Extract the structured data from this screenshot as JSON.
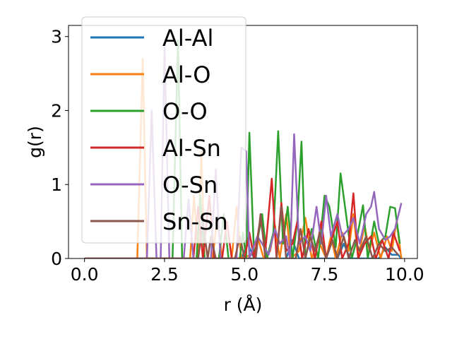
{
  "chart_data": {
    "type": "line",
    "xlabel": "r (Å)",
    "ylabel": "g(r)",
    "xlim": [
      -0.5,
      10.4
    ],
    "ylim": [
      0,
      3.15
    ],
    "xticks": [
      0.0,
      2.5,
      5.0,
      7.5,
      10.0
    ],
    "xtick_labels": [
      "0.0",
      "2.5",
      "5.0",
      "7.5",
      "10.0"
    ],
    "yticks": [
      0,
      1,
      2,
      3
    ],
    "ytick_labels": [
      "0",
      "1",
      "2",
      "3"
    ],
    "grid": false,
    "legend_position": "upper-left",
    "series": [
      {
        "name": "Al-Al",
        "color": "#1f77b4",
        "points": [
          [
            0,
            0
          ],
          [
            4.9,
            0
          ],
          [
            5.1,
            0.2
          ],
          [
            5.3,
            0
          ],
          [
            6.3,
            0
          ],
          [
            6.5,
            0.25
          ],
          [
            6.7,
            0
          ],
          [
            7.9,
            0
          ],
          [
            8.1,
            0.2
          ],
          [
            8.3,
            0
          ],
          [
            9.2,
            0
          ],
          [
            9.4,
            0.15
          ],
          [
            9.6,
            0.05
          ],
          [
            9.8,
            0.05
          ],
          [
            9.9,
            0
          ]
        ]
      },
      {
        "name": "Al-O",
        "color": "#ff7f0e",
        "points": [
          [
            0,
            0
          ],
          [
            1.65,
            0
          ],
          [
            1.82,
            2.7
          ],
          [
            1.95,
            0
          ],
          [
            3.3,
            0
          ],
          [
            3.42,
            0.85
          ],
          [
            3.55,
            0
          ],
          [
            3.65,
            1.45
          ],
          [
            3.75,
            0
          ],
          [
            4.0,
            0
          ],
          [
            4.15,
            0.55
          ],
          [
            4.3,
            0
          ],
          [
            4.6,
            0
          ],
          [
            4.75,
            0.7
          ],
          [
            4.9,
            0
          ],
          [
            5.2,
            0.05
          ],
          [
            5.4,
            0.3
          ],
          [
            5.6,
            0
          ],
          [
            5.8,
            0.1
          ],
          [
            5.95,
            0.45
          ],
          [
            6.1,
            0
          ],
          [
            6.3,
            0.6
          ],
          [
            6.45,
            0
          ],
          [
            6.7,
            0.1
          ],
          [
            6.9,
            0.55
          ],
          [
            7.1,
            0
          ],
          [
            7.3,
            0.25
          ],
          [
            7.55,
            0
          ],
          [
            7.7,
            0.3
          ],
          [
            7.85,
            0
          ],
          [
            8.05,
            0.35
          ],
          [
            8.25,
            0.1
          ],
          [
            8.4,
            0.6
          ],
          [
            8.55,
            0
          ],
          [
            8.75,
            0.45
          ],
          [
            8.9,
            0.1
          ],
          [
            9.05,
            0.35
          ],
          [
            9.25,
            0
          ],
          [
            9.45,
            0.3
          ],
          [
            9.6,
            0.1
          ],
          [
            9.75,
            0.5
          ],
          [
            9.9,
            0
          ]
        ]
      },
      {
        "name": "O-O",
        "color": "#2ca02c",
        "points": [
          [
            0,
            0
          ],
          [
            2.75,
            0
          ],
          [
            2.92,
            2.95
          ],
          [
            3.05,
            0
          ],
          [
            3.5,
            0
          ],
          [
            3.62,
            0.85
          ],
          [
            3.75,
            0
          ],
          [
            4.2,
            0
          ],
          [
            4.35,
            0.6
          ],
          [
            4.5,
            0
          ],
          [
            4.85,
            0
          ],
          [
            4.95,
            0.35
          ],
          [
            5.05,
            0
          ],
          [
            5.15,
            1.7
          ],
          [
            5.3,
            0
          ],
          [
            5.55,
            0.6
          ],
          [
            5.7,
            0
          ],
          [
            5.9,
            0.35
          ],
          [
            6.05,
            1.72
          ],
          [
            6.2,
            0.2
          ],
          [
            6.35,
            0.7
          ],
          [
            6.5,
            0
          ],
          [
            6.65,
            0.5
          ],
          [
            6.78,
            1.58
          ],
          [
            6.9,
            0
          ],
          [
            7.1,
            0.4
          ],
          [
            7.3,
            0
          ],
          [
            7.5,
            0.85
          ],
          [
            7.65,
            0.7
          ],
          [
            7.85,
            0.15
          ],
          [
            8.0,
            1.15
          ],
          [
            8.2,
            0.5
          ],
          [
            8.35,
            0
          ],
          [
            8.5,
            0.25
          ],
          [
            8.7,
            0.72
          ],
          [
            8.85,
            0
          ],
          [
            9.05,
            0.5
          ],
          [
            9.2,
            0.2
          ],
          [
            9.4,
            0.3
          ],
          [
            9.55,
            0.7
          ],
          [
            9.7,
            0.68
          ],
          [
            9.85,
            0.2
          ]
        ]
      },
      {
        "name": "Al-Sn",
        "color": "#d62728",
        "points": [
          [
            0,
            0
          ],
          [
            3.4,
            0
          ],
          [
            3.55,
            0.7
          ],
          [
            3.7,
            0
          ],
          [
            3.9,
            0.85
          ],
          [
            4.05,
            0
          ],
          [
            4.3,
            0
          ],
          [
            4.45,
            0.5
          ],
          [
            4.6,
            0
          ],
          [
            5.0,
            0
          ],
          [
            5.15,
            0.35
          ],
          [
            5.3,
            0
          ],
          [
            5.5,
            0.55
          ],
          [
            5.65,
            0.1
          ],
          [
            5.85,
            1.08
          ],
          [
            6.0,
            0
          ],
          [
            6.15,
            0.75
          ],
          [
            6.3,
            0.1
          ],
          [
            6.5,
            0.2
          ],
          [
            6.65,
            0.5
          ],
          [
            6.8,
            0
          ],
          [
            7.0,
            0.4
          ],
          [
            7.2,
            0
          ],
          [
            7.4,
            0.5
          ],
          [
            7.55,
            0
          ],
          [
            7.75,
            0.3
          ],
          [
            7.9,
            0.5
          ],
          [
            8.05,
            0
          ],
          [
            8.25,
            0.2
          ],
          [
            8.4,
            0.88
          ],
          [
            8.55,
            0
          ],
          [
            8.75,
            0.2
          ],
          [
            8.95,
            0.3
          ],
          [
            9.1,
            0
          ],
          [
            9.3,
            0.25
          ],
          [
            9.5,
            0
          ],
          [
            9.65,
            0.35
          ],
          [
            9.85,
            0.1
          ]
        ]
      },
      {
        "name": "O-Sn",
        "color": "#9467bd",
        "points": [
          [
            0,
            0
          ],
          [
            1.95,
            0
          ],
          [
            2.1,
            2.0
          ],
          [
            2.25,
            0
          ],
          [
            2.38,
            0
          ],
          [
            2.5,
            2.85
          ],
          [
            2.65,
            0
          ],
          [
            3.1,
            0
          ],
          [
            3.25,
            0.8
          ],
          [
            3.4,
            0
          ],
          [
            3.95,
            0
          ],
          [
            4.1,
            1.2
          ],
          [
            4.25,
            0
          ],
          [
            4.75,
            0
          ],
          [
            4.9,
            1.5
          ],
          [
            5.05,
            1.45
          ],
          [
            5.15,
            0
          ],
          [
            5.4,
            0.3
          ],
          [
            5.55,
            0.2
          ],
          [
            5.75,
            0.05
          ],
          [
            5.95,
            0.4
          ],
          [
            6.1,
            0.2
          ],
          [
            6.3,
            0.3
          ],
          [
            6.42,
            0
          ],
          [
            6.55,
            1.68
          ],
          [
            6.7,
            0.2
          ],
          [
            6.9,
            0.3
          ],
          [
            7.05,
            0.1
          ],
          [
            7.25,
            0.7
          ],
          [
            7.4,
            0.2
          ],
          [
            7.55,
            0.85
          ],
          [
            7.7,
            0.3
          ],
          [
            7.9,
            0.6
          ],
          [
            8.05,
            0.3
          ],
          [
            8.25,
            0.4
          ],
          [
            8.4,
            0.55
          ],
          [
            8.6,
            0.2
          ],
          [
            8.8,
            0.6
          ],
          [
            8.95,
            0.7
          ],
          [
            9.05,
            0.9
          ],
          [
            9.2,
            0.4
          ],
          [
            9.4,
            0.25
          ],
          [
            9.55,
            0.3
          ],
          [
            9.7,
            0.4
          ],
          [
            9.9,
            0.75
          ]
        ]
      },
      {
        "name": "Sn-Sn",
        "color": "#8c564b",
        "points": [
          [
            0,
            0
          ],
          [
            3.55,
            0
          ],
          [
            3.7,
            0.5
          ],
          [
            3.85,
            0
          ],
          [
            3.95,
            0.3
          ],
          [
            4.1,
            0
          ],
          [
            4.7,
            0
          ],
          [
            4.85,
            0.3
          ],
          [
            5.0,
            0
          ],
          [
            5.35,
            0
          ],
          [
            5.5,
            0.6
          ],
          [
            5.65,
            0
          ],
          [
            6.0,
            0
          ],
          [
            6.15,
            0.7
          ],
          [
            6.3,
            0
          ],
          [
            6.6,
            0
          ],
          [
            6.75,
            0.4
          ],
          [
            6.9,
            0
          ],
          [
            7.05,
            0.3
          ],
          [
            7.2,
            0.1
          ],
          [
            7.35,
            0.35
          ],
          [
            7.55,
            0
          ],
          [
            7.75,
            0.25
          ],
          [
            7.9,
            0
          ],
          [
            8.1,
            0.3
          ],
          [
            8.25,
            0
          ],
          [
            8.45,
            0.25
          ],
          [
            8.6,
            0.1
          ],
          [
            8.8,
            0.3
          ],
          [
            9.0,
            0
          ],
          [
            9.2,
            0.2
          ],
          [
            9.4,
            0.1
          ],
          [
            9.6,
            0.15
          ],
          [
            9.8,
            0.05
          ]
        ]
      }
    ]
  }
}
